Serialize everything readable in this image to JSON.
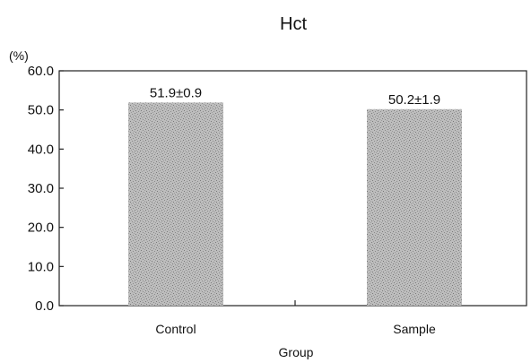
{
  "chart_data": {
    "type": "bar",
    "title": "Hct",
    "ylabel": "(%)",
    "xlabel": "Group",
    "categories": [
      "Control",
      "Sample"
    ],
    "values": [
      51.9,
      50.2
    ],
    "data_labels": [
      "51.9±0.9",
      "50.2±1.9"
    ],
    "ylim": [
      0,
      60
    ],
    "yticks": [
      "0.0",
      "10.0",
      "20.0",
      "30.0",
      "40.0",
      "50.0",
      "60.0"
    ],
    "grid": false,
    "colors": {
      "bar": "#b8b8b8",
      "bar_speckle": "#7a7a7a",
      "axis": "#222222"
    }
  }
}
